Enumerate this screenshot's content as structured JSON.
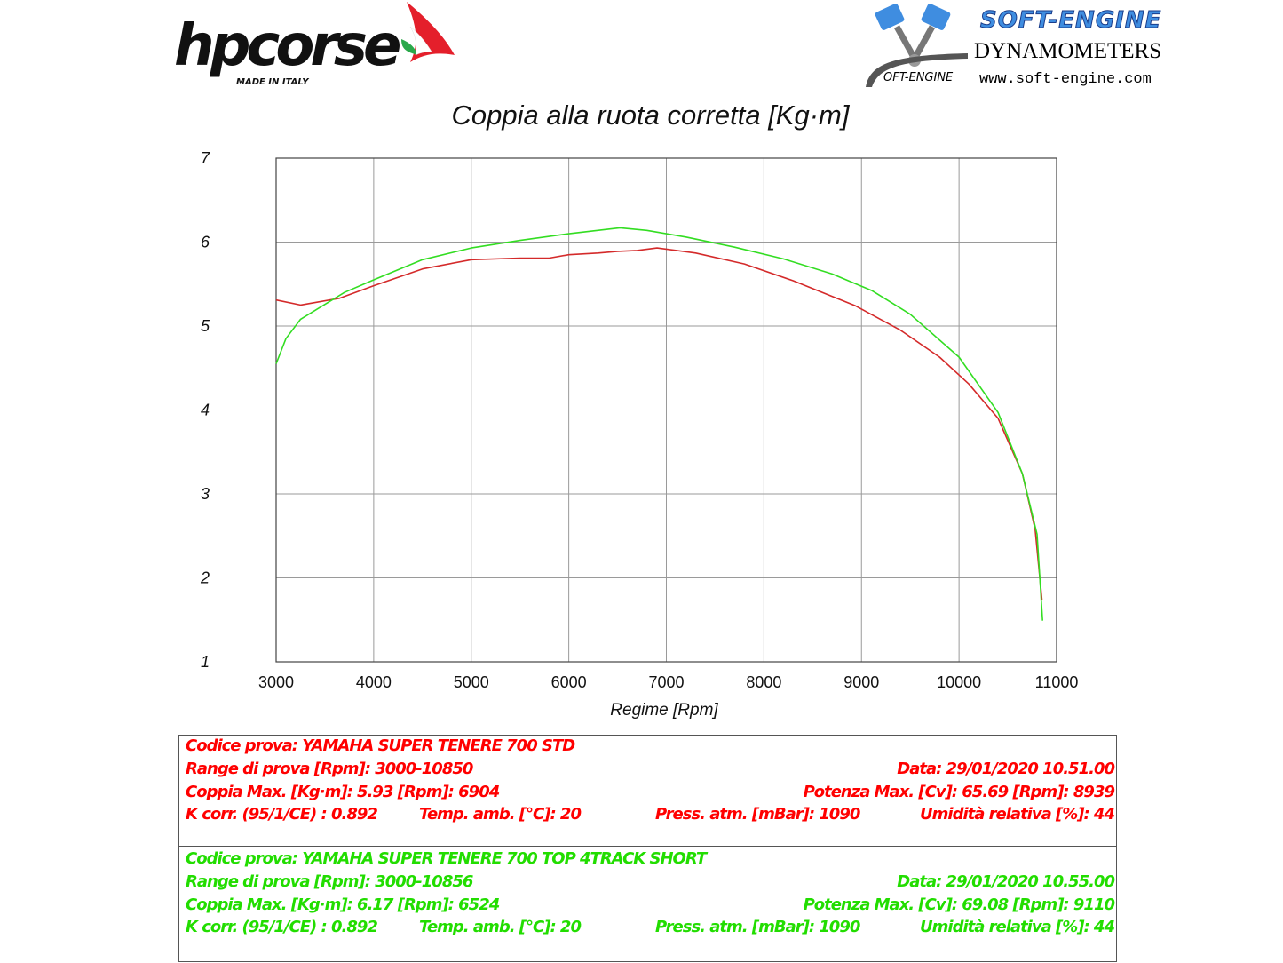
{
  "header": {
    "brand_wordmark": "hpcorse",
    "brand_tagline": "MADE IN ITALY",
    "dyno_title": "SOFT-ENGINE",
    "dyno_subtitle": "DYNAMOMETERS",
    "dyno_url": "www.soft-engine.com",
    "dyno_mini_logo": "OFT-ENGINE"
  },
  "chart_data": {
    "type": "line",
    "title": "Coppia alla ruota corretta [Kg·m]",
    "xlabel": "Regime [Rpm]",
    "ylabel": "",
    "xlim": [
      3000,
      11000
    ],
    "ylim": [
      1,
      7
    ],
    "x_ticks": [
      "3000",
      "4000",
      "5000",
      "6000",
      "7000",
      "8000",
      "9000",
      "10000",
      "11000"
    ],
    "y_ticks": [
      "1",
      "2",
      "3",
      "4",
      "5",
      "6",
      "7"
    ],
    "grid": true,
    "series": [
      {
        "color": "#d42a2a",
        "points": [
          [
            3000,
            5.31
          ],
          [
            3250,
            5.25
          ],
          [
            3650,
            5.33
          ],
          [
            4000,
            5.48
          ],
          [
            4500,
            5.68
          ],
          [
            5000,
            5.79
          ],
          [
            5500,
            5.81
          ],
          [
            5800,
            5.81
          ],
          [
            6000,
            5.85
          ],
          [
            6300,
            5.87
          ],
          [
            6500,
            5.89
          ],
          [
            6700,
            5.9
          ],
          [
            6904,
            5.93
          ],
          [
            7300,
            5.87
          ],
          [
            7800,
            5.74
          ],
          [
            8300,
            5.54
          ],
          [
            8939,
            5.24
          ],
          [
            9400,
            4.95
          ],
          [
            9800,
            4.63
          ],
          [
            10100,
            4.31
          ],
          [
            10400,
            3.9
          ],
          [
            10650,
            3.24
          ],
          [
            10780,
            2.58
          ],
          [
            10850,
            1.74
          ]
        ]
      },
      {
        "color": "#33dd22",
        "points": [
          [
            3000,
            4.55
          ],
          [
            3100,
            4.85
          ],
          [
            3250,
            5.08
          ],
          [
            3700,
            5.4
          ],
          [
            4000,
            5.55
          ],
          [
            4500,
            5.79
          ],
          [
            5000,
            5.93
          ],
          [
            5500,
            6.02
          ],
          [
            6000,
            6.1
          ],
          [
            6524,
            6.17
          ],
          [
            6800,
            6.14
          ],
          [
            7200,
            6.06
          ],
          [
            7700,
            5.94
          ],
          [
            8200,
            5.8
          ],
          [
            8700,
            5.62
          ],
          [
            9110,
            5.42
          ],
          [
            9500,
            5.14
          ],
          [
            10000,
            4.63
          ],
          [
            10400,
            3.97
          ],
          [
            10650,
            3.24
          ],
          [
            10800,
            2.52
          ],
          [
            10856,
            1.49
          ]
        ]
      }
    ]
  },
  "tests": [
    {
      "color": "#ff0000",
      "code": "Codice prova: YAMAHA SUPER TENERE 700 STD",
      "range": "Range di prova [Rpm]: 3000-10850",
      "date": "Data: 29/01/2020   10.51.00",
      "torque": "Coppia Max. [Kg·m]: 5.93   [Rpm]: 6904",
      "power": "Potenza Max. [Cv]: 65.69   [Rpm]: 8939",
      "kcorr": "K corr. (95/1/CE) : 0.892",
      "temp": "Temp. amb. [°C]: 20",
      "press": "Press. atm. [mBar]: 1090",
      "humid": "Umidità relativa [%]: 44"
    },
    {
      "color": "#22dd00",
      "code": "Codice prova: YAMAHA SUPER TENERE 700 TOP 4TRACK SHORT",
      "range": "Range di prova [Rpm]: 3000-10856",
      "date": "Data: 29/01/2020   10.55.00",
      "torque": "Coppia Max. [Kg·m]: 6.17   [Rpm]: 6524",
      "power": "Potenza Max. [Cv]: 69.08   [Rpm]: 9110",
      "kcorr": "K corr. (95/1/CE) : 0.892",
      "temp": "Temp. amb. [°C]: 20",
      "press": "Press. atm. [mBar]: 1090",
      "humid": "Umidità relativa [%]: 44"
    }
  ]
}
